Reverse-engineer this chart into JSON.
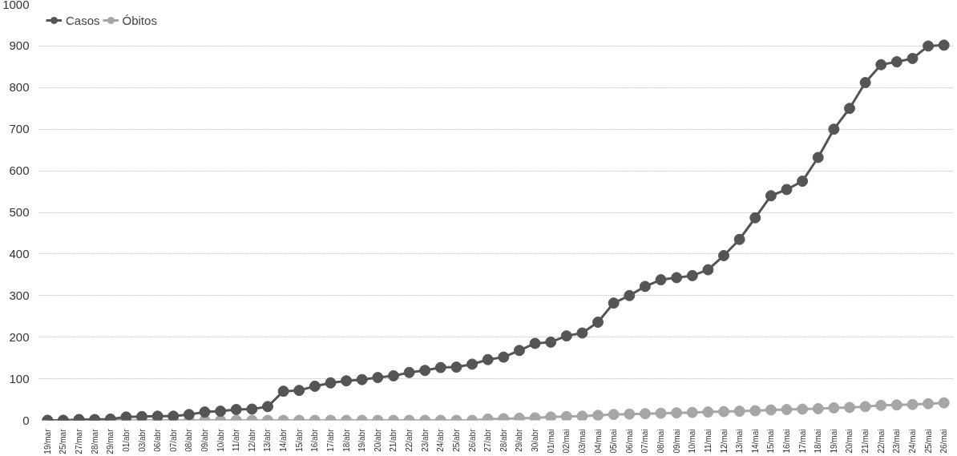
{
  "chart_data": {
    "type": "line",
    "categories": [
      "19/mar",
      "25/mar",
      "27/mar",
      "28/mar",
      "29/mar",
      "01/abr",
      "03/abr",
      "06/abr",
      "07/abr",
      "08/abr",
      "09/abr",
      "10/abr",
      "11/abr",
      "12/abr",
      "13/abr",
      "14/abr",
      "15/abr",
      "16/abr",
      "17/abr",
      "18/abr",
      "19/abr",
      "20/abr",
      "21/abr",
      "22/abr",
      "23/abr",
      "24/abr",
      "25/abr",
      "26/abr",
      "27/abr",
      "28/abr",
      "29/abr",
      "30/abr",
      "01/mai",
      "02/mai",
      "03/mai",
      "04/mai",
      "05/mai",
      "06/mai",
      "07/mai",
      "08/mai",
      "09/mai",
      "10/mai",
      "11/mai",
      "12/mai",
      "13/mai",
      "14/mai",
      "15/mai",
      "16/mai",
      "17/mai",
      "18/mai",
      "19/mai",
      "20/mai",
      "21/mai",
      "22/mai",
      "23/mai",
      "24/mai",
      "25/mai",
      "26/mai"
    ],
    "series": [
      {
        "name": "Casos",
        "color": "#555555",
        "values": [
          0,
          0,
          2,
          2,
          3,
          8,
          9,
          10,
          10,
          14,
          20,
          22,
          26,
          27,
          33,
          70,
          72,
          82,
          90,
          95,
          98,
          103,
          107,
          115,
          120,
          127,
          128,
          135,
          146,
          152,
          168,
          185,
          188,
          203,
          210,
          236,
          282,
          300,
          322,
          338,
          343,
          348,
          362,
          396,
          435,
          487,
          540,
          555,
          575,
          632,
          700,
          750,
          812,
          855,
          862,
          870,
          900,
          902
        ]
      },
      {
        "name": "Óbitos",
        "color": "#a6a6a6",
        "values": [
          0,
          0,
          0,
          0,
          0,
          0,
          0,
          0,
          0,
          0,
          0,
          0,
          0,
          0,
          0,
          0,
          0,
          0,
          0,
          0,
          0,
          0,
          0,
          0,
          0,
          0,
          0,
          0,
          3,
          4,
          5,
          6,
          8,
          9,
          10,
          12,
          14,
          15,
          16,
          17,
          18,
          19,
          20,
          21,
          22,
          23,
          25,
          26,
          27,
          28,
          30,
          31,
          33,
          36,
          37,
          38,
          40,
          42
        ]
      }
    ],
    "ylim": [
      0,
      1000
    ],
    "yticks": [
      0,
      100,
      200,
      300,
      400,
      500,
      600,
      700,
      800,
      900,
      1000
    ],
    "grid": "y",
    "legend": "top left",
    "marker": "circle",
    "line_style": "solid"
  }
}
